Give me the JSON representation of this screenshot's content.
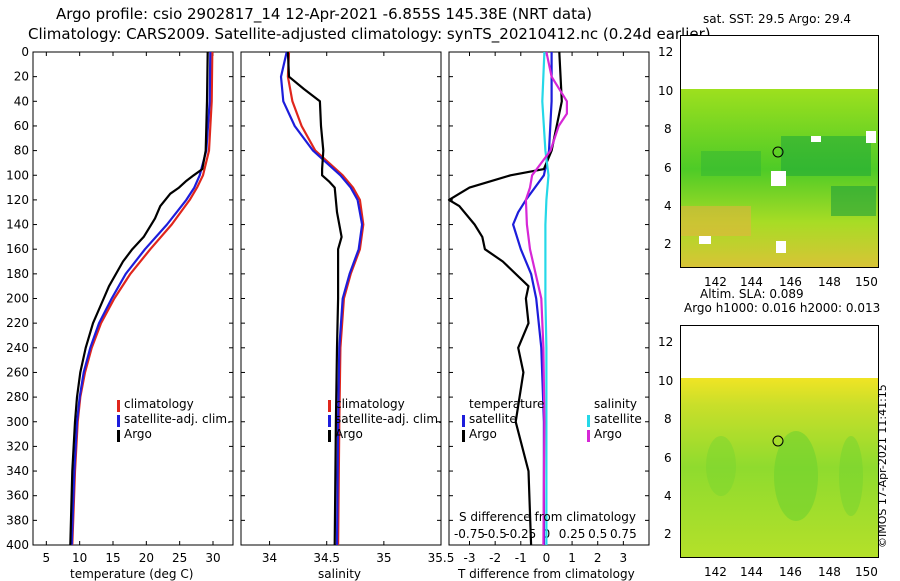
{
  "header": {
    "line1": "Argo profile: csio 2902817_14 12-Apr-2021 -6.855S 145.38E (NRT data)",
    "line2": "Climatology: CARS2009. Satellite-adjusted climatology: synTS_20210412.nc (0.24d earlier)"
  },
  "colors": {
    "climatology": "#e0261c",
    "satellite": "#1d1ddb",
    "argo": "#000000",
    "sat_salinity": "#25d8e8",
    "argo_salinity": "#d627d6"
  },
  "chart_data": [
    {
      "type": "line",
      "xlabel": "temperature (deg C)",
      "ylabel": "",
      "xlim": [
        3,
        33
      ],
      "ylim": [
        400,
        0
      ],
      "xticks": [
        "5",
        "10",
        "15",
        "20",
        "25",
        "30"
      ],
      "yticks": [
        "0",
        "20",
        "40",
        "60",
        "80",
        "100",
        "120",
        "140",
        "160",
        "180",
        "200",
        "220",
        "240",
        "260",
        "280",
        "300",
        "320",
        "340",
        "360",
        "380",
        "400"
      ],
      "series": [
        {
          "name": "climatology",
          "depth": [
            0,
            40,
            80,
            100,
            110,
            120,
            140,
            160,
            180,
            200,
            220,
            240,
            260,
            280,
            300,
            340,
            400
          ],
          "values": [
            29.9,
            29.8,
            29.4,
            28.5,
            27.6,
            26.5,
            23.8,
            20.6,
            17.6,
            15.2,
            13.2,
            11.8,
            10.8,
            10.1,
            9.7,
            9.3,
            8.9
          ]
        },
        {
          "name": "satellite-adj. clim.",
          "depth": [
            0,
            40,
            80,
            100,
            110,
            120,
            140,
            160,
            180,
            200,
            220,
            240,
            260,
            280,
            300,
            340,
            400
          ],
          "values": [
            29.6,
            29.5,
            29.0,
            28.0,
            27.2,
            26.0,
            23.1,
            19.8,
            16.9,
            14.8,
            12.9,
            11.6,
            10.6,
            10.0,
            9.6,
            9.2,
            8.8
          ]
        },
        {
          "name": "Argo",
          "depth": [
            0,
            40,
            80,
            95,
            100,
            105,
            110,
            115,
            125,
            135,
            150,
            160,
            170,
            190,
            200,
            220,
            240,
            260,
            280,
            300,
            340,
            400
          ],
          "values": [
            29.2,
            29.1,
            28.9,
            28.4,
            27.1,
            25.9,
            24.9,
            23.6,
            22.1,
            21.3,
            19.6,
            17.9,
            16.5,
            14.4,
            13.6,
            12.0,
            10.9,
            10.1,
            9.6,
            9.3,
            8.9,
            8.6
          ]
        }
      ]
    },
    {
      "type": "line",
      "xlabel": "salinity",
      "xlim": [
        33.75,
        35.5
      ],
      "ylim": [
        400,
        0
      ],
      "xticks": [
        "34",
        "34.5",
        "35",
        "35.5"
      ],
      "series": [
        {
          "name": "climatology",
          "depth": [
            0,
            20,
            40,
            60,
            80,
            90,
            100,
            110,
            120,
            140,
            160,
            180,
            200,
            240,
            300,
            400
          ],
          "values": [
            34.17,
            34.16,
            34.2,
            34.28,
            34.4,
            34.52,
            34.64,
            34.73,
            34.79,
            34.82,
            34.79,
            34.71,
            34.65,
            34.62,
            34.61,
            34.6
          ]
        },
        {
          "name": "satellite-adj. clim.",
          "depth": [
            0,
            20,
            40,
            60,
            80,
            90,
            100,
            110,
            120,
            140,
            160,
            180,
            200,
            240,
            300,
            400
          ],
          "values": [
            34.15,
            34.1,
            34.12,
            34.22,
            34.38,
            34.5,
            34.62,
            34.71,
            34.77,
            34.81,
            34.78,
            34.7,
            34.64,
            34.61,
            34.6,
            34.59
          ]
        },
        {
          "name": "Argo",
          "depth": [
            0,
            20,
            30,
            40,
            60,
            80,
            95,
            100,
            105,
            110,
            130,
            150,
            160,
            180,
            200,
            240,
            300,
            400
          ],
          "values": [
            34.16,
            34.17,
            34.3,
            34.44,
            34.45,
            34.47,
            34.46,
            34.46,
            34.52,
            34.57,
            34.59,
            34.63,
            34.6,
            34.6,
            34.6,
            34.59,
            34.58,
            34.57
          ]
        }
      ]
    },
    {
      "type": "line",
      "xlabel": "T difference from climatology",
      "xlim": [
        -3.8,
        4
      ],
      "ylim": [
        400,
        0
      ],
      "xticks": [
        "-3",
        "-2",
        "-1",
        "0",
        "1",
        "2",
        "3"
      ],
      "top_axis_label": "S difference from climatology",
      "top_xticks": [
        "-0.75",
        "-0.5",
        "-0.25",
        "0",
        "0.25",
        "0.5",
        "0.75"
      ],
      "series": [
        {
          "name": "temperature satellite",
          "depth": [
            0,
            40,
            80,
            100,
            120,
            130,
            140,
            160,
            180,
            200,
            240,
            300,
            400
          ],
          "values": [
            0.2,
            0.2,
            0.1,
            -0.1,
            -0.8,
            -1.1,
            -1.3,
            -1.0,
            -0.6,
            -0.4,
            -0.2,
            -0.1,
            -0.1
          ]
        },
        {
          "name": "temperature Argo",
          "depth": [
            0,
            40,
            80,
            95,
            100,
            105,
            110,
            115,
            120,
            125,
            140,
            150,
            160,
            170,
            190,
            200,
            220,
            240,
            260,
            300,
            340,
            400
          ],
          "values": [
            0.5,
            0.6,
            0.2,
            -0.1,
            -1.4,
            -2.2,
            -3.0,
            -3.4,
            -3.8,
            -3.4,
            -2.8,
            -2.5,
            -2.4,
            -1.7,
            -0.7,
            -0.8,
            -0.7,
            -1.1,
            -0.9,
            -1.2,
            -0.7,
            -0.6
          ]
        },
        {
          "name": "salinity satellite",
          "depth": [
            0,
            40,
            80,
            100,
            120,
            140,
            160,
            200,
            240,
            300,
            400
          ],
          "values": [
            -0.02,
            -0.04,
            -0.01,
            0.02,
            0.0,
            -0.01,
            -0.01,
            -0.01,
            0.0,
            0.0,
            0.0
          ]
        },
        {
          "name": "salinity Argo",
          "depth": [
            0,
            20,
            40,
            50,
            60,
            80,
            100,
            110,
            120,
            140,
            160,
            200,
            240,
            300,
            400
          ],
          "values": [
            0.0,
            0.05,
            0.2,
            0.2,
            0.12,
            0.04,
            -0.14,
            -0.16,
            -0.2,
            -0.19,
            -0.16,
            -0.05,
            -0.03,
            -0.02,
            -0.03
          ]
        }
      ]
    }
  ],
  "legend_panel1": {
    "items": [
      "climatology",
      "satellite-adj. clim.",
      "Argo"
    ]
  },
  "legend_diff": {
    "temperature_title": "temperature",
    "salinity_title": "salinity",
    "satellite": "satellite",
    "argo": "Argo"
  },
  "maps": {
    "sst": {
      "title": "sat. SST: 29.5 Argo: 29.4",
      "yticks": [
        "2",
        "4",
        "6",
        "8",
        "10",
        "12"
      ],
      "xticks": [
        "142",
        "144",
        "146",
        "148",
        "150"
      ]
    },
    "sla": {
      "title_line1": "Altim. SLA: 0.089",
      "title_line2": "Argo h1000: 0.016 h2000: 0.013",
      "yticks": [
        "2",
        "4",
        "6",
        "8",
        "10",
        "12"
      ],
      "xticks": [
        "142",
        "144",
        "146",
        "148",
        "150"
      ]
    }
  },
  "credit": "©IMOS 17-Apr-2021 11:41:15"
}
